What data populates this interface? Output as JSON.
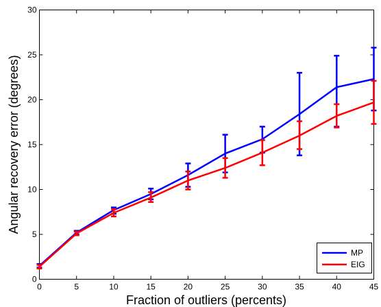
{
  "chart_data": {
    "type": "line",
    "xlabel": "Fraction of outliers (percents)",
    "ylabel": "Angular recovery error (degrees)",
    "xlim": [
      0,
      45
    ],
    "ylim": [
      0,
      30
    ],
    "x_ticks": [
      "0",
      "5",
      "10",
      "15",
      "20",
      "25",
      "30",
      "35",
      "40",
      "45"
    ],
    "y_ticks": [
      "0",
      "5",
      "10",
      "15",
      "20",
      "25",
      "30"
    ],
    "x_tick_values": [
      0,
      5,
      10,
      15,
      20,
      25,
      30,
      35,
      40,
      45
    ],
    "y_tick_values": [
      0,
      5,
      10,
      15,
      20,
      25,
      30
    ],
    "grid": false,
    "legend_position": "bottom-right",
    "x": [
      0,
      5,
      10,
      15,
      20,
      25,
      30,
      35,
      40,
      45
    ],
    "series": [
      {
        "name": "MP",
        "color": "#0000ff",
        "values": [
          1.5,
          5.2,
          7.7,
          9.5,
          11.6,
          14.0,
          15.6,
          18.4,
          21.4,
          22.3
        ],
        "err_low": [
          1.3,
          5.0,
          7.3,
          8.9,
          10.3,
          11.9,
          14.1,
          13.8,
          17.0,
          18.8
        ],
        "err_high": [
          1.7,
          5.4,
          8.0,
          10.1,
          12.9,
          16.1,
          17.0,
          23.0,
          24.9,
          25.8
        ]
      },
      {
        "name": "EIG",
        "color": "#ff0000",
        "values": [
          1.4,
          5.1,
          7.4,
          9.1,
          11.0,
          12.4,
          14.1,
          16.0,
          18.2,
          19.7
        ],
        "err_low": [
          1.2,
          4.9,
          7.0,
          8.6,
          10.0,
          11.3,
          12.7,
          14.5,
          16.9,
          17.3
        ],
        "err_high": [
          1.6,
          5.3,
          7.8,
          9.7,
          12.0,
          13.5,
          15.5,
          17.6,
          19.5,
          22.1
        ]
      }
    ]
  }
}
